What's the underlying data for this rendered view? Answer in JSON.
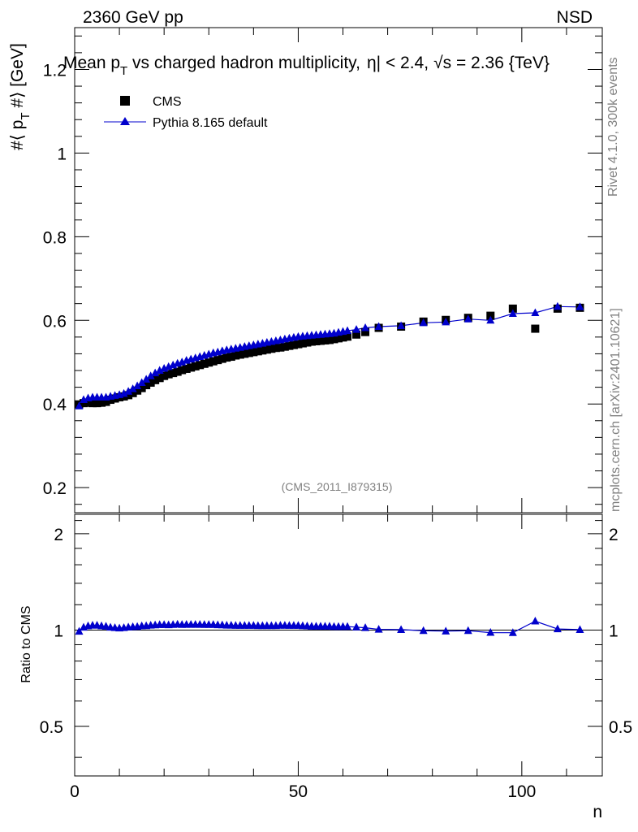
{
  "header": {
    "left": "2360 GeV pp",
    "right": "NSD"
  },
  "title": "Mean p_T vs charged hadron multiplicity, |η| < 2.4, √s = 2.36 {TeV}",
  "title_parts": {
    "a": "Mean p",
    "sub": "T",
    "b": " vs charged hadron multiplicity,",
    "eta": "η| < 2.4,",
    "sqrt": "√",
    "c": "s = 2.36 {TeV}"
  },
  "side_labels": {
    "rivet": "Rivet 4.1.0,  300k events",
    "mcplots": "mcplots.cern.ch [arXiv:2401.10621]"
  },
  "analysis_id": "(CMS_2011_I879315)",
  "colors": {
    "mc": "#0000cc",
    "data": "#000000",
    "gray": "#808080"
  },
  "chart_data": [
    {
      "type": "scatter",
      "panel": "main",
      "ylabel": "#⟨ p_T #⟩ [GeV]",
      "ylabel_parts": {
        "a": "#⟨ p",
        "sub": "T",
        "b": " #⟩ [GeV]"
      },
      "xlim": [
        0,
        118
      ],
      "ylim": [
        0.14,
        1.3
      ],
      "yticks": [
        0.2,
        0.4,
        0.6,
        0.8,
        1.0,
        1.2
      ],
      "ytick_labels": [
        "0.2",
        "0.4",
        "0.6",
        "0.8",
        "1",
        "1.2"
      ],
      "legend": {
        "position": "top-left",
        "entries": [
          "CMS",
          "Pythia 8.165 default"
        ]
      },
      "series": [
        {
          "name": "CMS",
          "marker": "square",
          "x": [
            1,
            2,
            3,
            4,
            5,
            6,
            7,
            8,
            9,
            10,
            11,
            12,
            13,
            14,
            15,
            16,
            17,
            18,
            19,
            20,
            21,
            22,
            23,
            24,
            25,
            26,
            27,
            28,
            29,
            30,
            31,
            32,
            33,
            34,
            35,
            36,
            37,
            38,
            39,
            40,
            41,
            42,
            43,
            44,
            45,
            46,
            47,
            48,
            49,
            50,
            51,
            52,
            53,
            54,
            55,
            56,
            57,
            58,
            59,
            60,
            61,
            63,
            65,
            68,
            73,
            78,
            83,
            88,
            93,
            98,
            103,
            108,
            113
          ],
          "values": [
            0.399,
            0.402,
            0.403,
            0.402,
            0.402,
            0.403,
            0.405,
            0.41,
            0.413,
            0.416,
            0.418,
            0.421,
            0.426,
            0.432,
            0.438,
            0.445,
            0.451,
            0.457,
            0.462,
            0.467,
            0.471,
            0.474,
            0.477,
            0.481,
            0.484,
            0.487,
            0.49,
            0.493,
            0.496,
            0.499,
            0.502,
            0.505,
            0.508,
            0.511,
            0.513,
            0.516,
            0.518,
            0.52,
            0.522,
            0.524,
            0.526,
            0.528,
            0.53,
            0.532,
            0.534,
            0.535,
            0.537,
            0.539,
            0.541,
            0.543,
            0.545,
            0.547,
            0.549,
            0.55,
            0.551,
            0.552,
            0.553,
            0.555,
            0.557,
            0.559,
            0.561,
            0.566,
            0.572,
            0.582,
            0.585,
            0.597,
            0.601,
            0.606,
            0.611,
            0.628,
            0.58,
            0.628,
            0.63
          ]
        },
        {
          "name": "Pythia 8.165 default",
          "marker": "triangle",
          "x": [
            1,
            2,
            3,
            4,
            5,
            6,
            7,
            8,
            9,
            10,
            11,
            12,
            13,
            14,
            15,
            16,
            17,
            18,
            19,
            20,
            21,
            22,
            23,
            24,
            25,
            26,
            27,
            28,
            29,
            30,
            31,
            32,
            33,
            34,
            35,
            36,
            37,
            38,
            39,
            40,
            41,
            42,
            43,
            44,
            45,
            46,
            47,
            48,
            49,
            50,
            51,
            52,
            53,
            54,
            55,
            56,
            57,
            58,
            59,
            60,
            61,
            63,
            65,
            68,
            73,
            78,
            83,
            88,
            93,
            98,
            103,
            108,
            113
          ],
          "values": [
            0.395,
            0.41,
            0.414,
            0.416,
            0.416,
            0.416,
            0.416,
            0.418,
            0.42,
            0.422,
            0.425,
            0.43,
            0.436,
            0.443,
            0.451,
            0.459,
            0.467,
            0.474,
            0.48,
            0.485,
            0.489,
            0.493,
            0.497,
            0.5,
            0.504,
            0.507,
            0.51,
            0.513,
            0.516,
            0.519,
            0.522,
            0.524,
            0.527,
            0.529,
            0.531,
            0.533,
            0.535,
            0.537,
            0.539,
            0.541,
            0.543,
            0.545,
            0.547,
            0.549,
            0.551,
            0.553,
            0.555,
            0.557,
            0.559,
            0.561,
            0.562,
            0.563,
            0.564,
            0.565,
            0.566,
            0.567,
            0.568,
            0.569,
            0.571,
            0.573,
            0.575,
            0.578,
            0.582,
            0.585,
            0.587,
            0.594,
            0.596,
            0.603,
            0.6,
            0.616,
            0.618,
            0.633,
            0.632
          ]
        }
      ]
    },
    {
      "type": "line",
      "panel": "ratio",
      "ylabel": "Ratio to CMS",
      "xlabel": "n",
      "xlim": [
        0,
        118
      ],
      "ylim": [
        0.35,
        2.3
      ],
      "xticks": [
        0,
        50,
        100
      ],
      "xtick_labels": [
        "0",
        "50",
        "100"
      ],
      "yticks": [
        0.5,
        1,
        2
      ],
      "ytick_labels": [
        "0.5",
        "1",
        "2"
      ],
      "series": [
        {
          "name": "Pythia 8.165 default / CMS",
          "x": [
            1,
            2,
            3,
            4,
            5,
            6,
            7,
            8,
            9,
            10,
            11,
            12,
            13,
            14,
            15,
            16,
            17,
            18,
            19,
            20,
            21,
            22,
            23,
            24,
            25,
            26,
            27,
            28,
            29,
            30,
            31,
            32,
            33,
            34,
            35,
            36,
            37,
            38,
            39,
            40,
            41,
            42,
            43,
            44,
            45,
            46,
            47,
            48,
            49,
            50,
            51,
            52,
            53,
            54,
            55,
            56,
            57,
            58,
            59,
            60,
            61,
            63,
            65,
            68,
            73,
            78,
            83,
            88,
            93,
            98,
            103,
            108,
            113
          ],
          "values": [
            0.99,
            1.02,
            1.03,
            1.035,
            1.035,
            1.03,
            1.027,
            1.02,
            1.017,
            1.014,
            1.017,
            1.021,
            1.023,
            1.025,
            1.03,
            1.031,
            1.035,
            1.037,
            1.039,
            1.039,
            1.038,
            1.04,
            1.042,
            1.04,
            1.041,
            1.041,
            1.041,
            1.041,
            1.04,
            1.04,
            1.04,
            1.038,
            1.037,
            1.035,
            1.035,
            1.033,
            1.033,
            1.033,
            1.033,
            1.033,
            1.032,
            1.032,
            1.032,
            1.032,
            1.032,
            1.034,
            1.034,
            1.033,
            1.033,
            1.033,
            1.031,
            1.029,
            1.027,
            1.027,
            1.027,
            1.027,
            1.027,
            1.025,
            1.025,
            1.025,
            1.025,
            1.021,
            1.017,
            1.005,
            1.003,
            0.995,
            0.992,
            0.995,
            0.982,
            0.981,
            1.066,
            1.008,
            1.003
          ]
        }
      ]
    }
  ]
}
